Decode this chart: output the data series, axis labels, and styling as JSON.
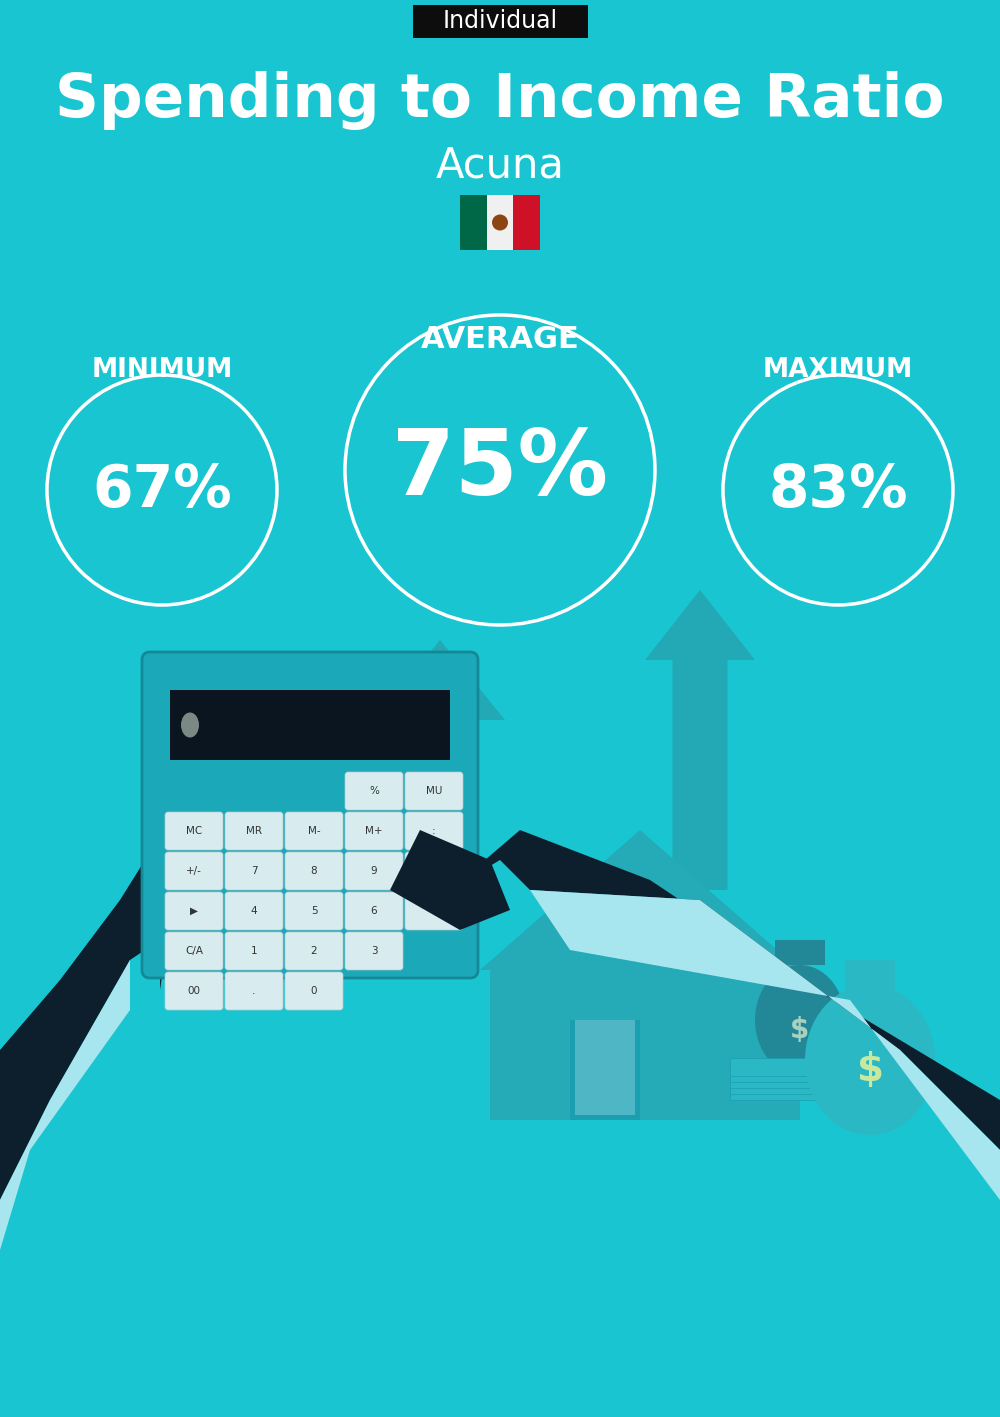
{
  "bg_color": "#19c5d0",
  "tag_text": "Individual",
  "tag_bg": "#0d0d0d",
  "tag_color": "#ffffff",
  "title": "Spending to Income Ratio",
  "city": "Acuna",
  "avg_label": "AVERAGE",
  "min_label": "MINIMUM",
  "max_label": "MAXIMUM",
  "min_value": "67%",
  "avg_value": "75%",
  "max_value": "83%",
  "circle_color": "#ffffff",
  "text_color": "#ffffff",
  "title_fontsize": 44,
  "city_fontsize": 30,
  "label_fontsize": 19,
  "avg_label_fontsize": 22,
  "min_val_fontsize": 42,
  "avg_val_fontsize": 65,
  "max_val_fontsize": 42,
  "tag_fontsize": 17,
  "illustration_color": "#2ab8c3",
  "dark_color": "#0d1f2d",
  "cuff_color": "#a8e6ef",
  "calc_body": "#1ba8b8",
  "calc_screen": "#0a1520",
  "btn_light": "#d8ecf0",
  "btn_dark": "#1590a0"
}
